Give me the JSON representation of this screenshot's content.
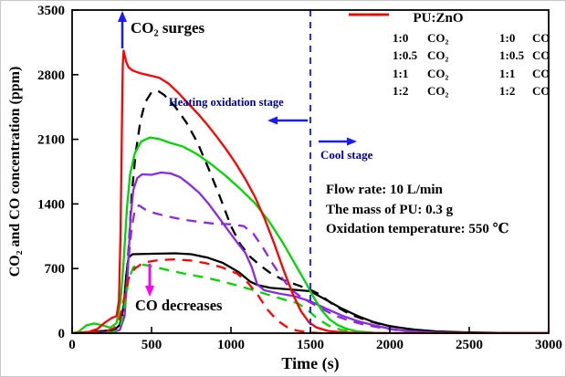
{
  "chart_data": {
    "type": "line",
    "title": "",
    "xlabel": "Time (s)",
    "ylabel": "CO₂ and CO concentration (ppm)",
    "xlim": [
      0,
      3000
    ],
    "ylim": [
      0,
      3500
    ],
    "x_ticks": [
      0,
      500,
      1000,
      1500,
      2000,
      2500,
      3000
    ],
    "y_ticks": [
      0,
      700,
      1400,
      2100,
      2800,
      3500
    ],
    "grid": false,
    "legend_position": "top-right",
    "stage_divider_x": 1500,
    "divider_color": "#2a2aff",
    "series": [
      {
        "name": "1:0 CO₂",
        "ratio": "1:0",
        "species": "CO₂",
        "color": "#000000",
        "style": "solid",
        "points": [
          [
            0,
            0
          ],
          [
            120,
            15
          ],
          [
            200,
            25
          ],
          [
            270,
            40
          ],
          [
            300,
            90
          ],
          [
            325,
            300
          ],
          [
            340,
            620
          ],
          [
            355,
            820
          ],
          [
            380,
            855
          ],
          [
            500,
            860
          ],
          [
            650,
            865
          ],
          [
            750,
            855
          ],
          [
            850,
            820
          ],
          [
            950,
            760
          ],
          [
            1050,
            660
          ],
          [
            1120,
            560
          ],
          [
            1170,
            520
          ],
          [
            1250,
            490
          ],
          [
            1400,
            470
          ],
          [
            1500,
            455
          ],
          [
            1600,
            360
          ],
          [
            1700,
            265
          ],
          [
            1800,
            185
          ],
          [
            1900,
            120
          ],
          [
            2000,
            75
          ],
          [
            2150,
            40
          ],
          [
            2300,
            18
          ],
          [
            2500,
            8
          ],
          [
            2700,
            3
          ],
          [
            3000,
            0
          ]
        ]
      },
      {
        "name": "1:0 CO",
        "ratio": "1:0",
        "species": "CO",
        "color": "#000000",
        "style": "dashed",
        "points": [
          [
            0,
            0
          ],
          [
            200,
            8
          ],
          [
            270,
            25
          ],
          [
            310,
            90
          ],
          [
            335,
            400
          ],
          [
            355,
            900
          ],
          [
            375,
            1500
          ],
          [
            400,
            1950
          ],
          [
            430,
            2300
          ],
          [
            460,
            2500
          ],
          [
            500,
            2610
          ],
          [
            540,
            2625
          ],
          [
            580,
            2580
          ],
          [
            650,
            2450
          ],
          [
            720,
            2280
          ],
          [
            790,
            2060
          ],
          [
            860,
            1780
          ],
          [
            930,
            1480
          ],
          [
            1000,
            1160
          ],
          [
            1060,
            960
          ],
          [
            1120,
            830
          ],
          [
            1180,
            740
          ],
          [
            1250,
            650
          ],
          [
            1330,
            575
          ],
          [
            1420,
            520
          ],
          [
            1500,
            470
          ],
          [
            1560,
            420
          ],
          [
            1650,
            300
          ],
          [
            1750,
            205
          ],
          [
            1850,
            140
          ],
          [
            1950,
            92
          ],
          [
            2100,
            48
          ],
          [
            2250,
            22
          ],
          [
            2450,
            8
          ],
          [
            2700,
            2
          ],
          [
            3000,
            0
          ]
        ]
      },
      {
        "name": "1:0.5 CO₂",
        "ratio": "1:0.5",
        "species": "CO₂",
        "color": "#8a2be2",
        "style": "solid",
        "points": [
          [
            0,
            0
          ],
          [
            250,
            8
          ],
          [
            300,
            35
          ],
          [
            330,
            180
          ],
          [
            350,
            650
          ],
          [
            368,
            1250
          ],
          [
            385,
            1550
          ],
          [
            410,
            1680
          ],
          [
            440,
            1720
          ],
          [
            500,
            1715
          ],
          [
            560,
            1740
          ],
          [
            620,
            1730
          ],
          [
            680,
            1690
          ],
          [
            740,
            1610
          ],
          [
            800,
            1520
          ],
          [
            860,
            1400
          ],
          [
            920,
            1260
          ],
          [
            980,
            1120
          ],
          [
            1040,
            980
          ],
          [
            1090,
            870
          ],
          [
            1130,
            720
          ],
          [
            1165,
            530
          ],
          [
            1210,
            465
          ],
          [
            1300,
            430
          ],
          [
            1400,
            400
          ],
          [
            1500,
            345
          ],
          [
            1600,
            265
          ],
          [
            1700,
            190
          ],
          [
            1800,
            130
          ],
          [
            1900,
            85
          ],
          [
            2000,
            48
          ],
          [
            2100,
            25
          ],
          [
            2250,
            8
          ],
          [
            2450,
            0
          ],
          [
            3000,
            0
          ]
        ]
      },
      {
        "name": "1:0.5 CO",
        "ratio": "1:0.5",
        "species": "CO",
        "color": "#8a2be2",
        "style": "dashed",
        "points": [
          [
            0,
            0
          ],
          [
            260,
            8
          ],
          [
            305,
            50
          ],
          [
            335,
            350
          ],
          [
            355,
            800
          ],
          [
            375,
            1150
          ],
          [
            395,
            1330
          ],
          [
            420,
            1385
          ],
          [
            460,
            1340
          ],
          [
            520,
            1300
          ],
          [
            600,
            1265
          ],
          [
            700,
            1230
          ],
          [
            800,
            1205
          ],
          [
            900,
            1185
          ],
          [
            1000,
            1180
          ],
          [
            1080,
            1160
          ],
          [
            1140,
            1080
          ],
          [
            1200,
            930
          ],
          [
            1260,
            760
          ],
          [
            1320,
            600
          ],
          [
            1380,
            470
          ],
          [
            1450,
            380
          ],
          [
            1550,
            285
          ],
          [
            1650,
            195
          ],
          [
            1750,
            132
          ],
          [
            1850,
            88
          ],
          [
            1950,
            56
          ],
          [
            2050,
            32
          ],
          [
            2200,
            12
          ],
          [
            2400,
            2
          ],
          [
            3000,
            0
          ]
        ]
      },
      {
        "name": "1:1 CO₂",
        "ratio": "1:1",
        "species": "CO₂",
        "color": "#00d400",
        "style": "solid",
        "points": [
          [
            0,
            0
          ],
          [
            40,
            15
          ],
          [
            90,
            85
          ],
          [
            140,
            105
          ],
          [
            190,
            85
          ],
          [
            240,
            60
          ],
          [
            280,
            110
          ],
          [
            305,
            350
          ],
          [
            325,
            800
          ],
          [
            345,
            1350
          ],
          [
            365,
            1720
          ],
          [
            395,
            1950
          ],
          [
            435,
            2075
          ],
          [
            490,
            2120
          ],
          [
            545,
            2105
          ],
          [
            610,
            2065
          ],
          [
            700,
            2020
          ],
          [
            790,
            1935
          ],
          [
            880,
            1825
          ],
          [
            970,
            1700
          ],
          [
            1060,
            1560
          ],
          [
            1150,
            1410
          ],
          [
            1240,
            1210
          ],
          [
            1330,
            970
          ],
          [
            1410,
            730
          ],
          [
            1470,
            550
          ],
          [
            1520,
            390
          ],
          [
            1570,
            250
          ],
          [
            1620,
            150
          ],
          [
            1670,
            90
          ],
          [
            1730,
            45
          ],
          [
            1800,
            18
          ],
          [
            1900,
            5
          ],
          [
            2000,
            0
          ],
          [
            3000,
            0
          ]
        ]
      },
      {
        "name": "1:1 CO",
        "ratio": "1:1",
        "species": "CO",
        "color": "#00d400",
        "style": "dashed",
        "points": [
          [
            0,
            0
          ],
          [
            250,
            8
          ],
          [
            300,
            45
          ],
          [
            330,
            280
          ],
          [
            355,
            580
          ],
          [
            385,
            715
          ],
          [
            425,
            745
          ],
          [
            475,
            735
          ],
          [
            550,
            705
          ],
          [
            650,
            665
          ],
          [
            750,
            630
          ],
          [
            850,
            598
          ],
          [
            950,
            558
          ],
          [
            1050,
            512
          ],
          [
            1150,
            462
          ],
          [
            1250,
            408
          ],
          [
            1350,
            356
          ],
          [
            1420,
            325
          ],
          [
            1480,
            255
          ],
          [
            1550,
            150
          ],
          [
            1620,
            78
          ],
          [
            1690,
            38
          ],
          [
            1770,
            12
          ],
          [
            1870,
            3
          ],
          [
            2000,
            0
          ],
          [
            3000,
            0
          ]
        ]
      },
      {
        "name": "1:2 CO₂",
        "ratio": "1:2",
        "species": "CO₂",
        "color": "#ff0000",
        "style": "solid",
        "points": [
          [
            0,
            0
          ],
          [
            100,
            12
          ],
          [
            160,
            45
          ],
          [
            210,
            120
          ],
          [
            250,
            165
          ],
          [
            280,
            185
          ],
          [
            295,
            350
          ],
          [
            305,
            1100
          ],
          [
            313,
            2200
          ],
          [
            319,
            2900
          ],
          [
            324,
            3060
          ],
          [
            331,
            3010
          ],
          [
            340,
            2940
          ],
          [
            355,
            2880
          ],
          [
            380,
            2845
          ],
          [
            430,
            2815
          ],
          [
            490,
            2790
          ],
          [
            550,
            2765
          ],
          [
            610,
            2700
          ],
          [
            670,
            2600
          ],
          [
            730,
            2490
          ],
          [
            790,
            2380
          ],
          [
            850,
            2260
          ],
          [
            910,
            2130
          ],
          [
            970,
            1990
          ],
          [
            1030,
            1840
          ],
          [
            1090,
            1670
          ],
          [
            1150,
            1480
          ],
          [
            1210,
            1250
          ],
          [
            1270,
            980
          ],
          [
            1330,
            690
          ],
          [
            1390,
            420
          ],
          [
            1440,
            240
          ],
          [
            1490,
            120
          ],
          [
            1540,
            60
          ],
          [
            1610,
            25
          ],
          [
            1700,
            10
          ],
          [
            1800,
            3
          ],
          [
            1900,
            0
          ],
          [
            3000,
            0
          ]
        ]
      },
      {
        "name": "1:2 CO",
        "ratio": "1:2",
        "species": "CO",
        "color": "#ff0000",
        "style": "dashed",
        "points": [
          [
            0,
            0
          ],
          [
            150,
            8
          ],
          [
            220,
            25
          ],
          [
            265,
            55
          ],
          [
            295,
            130
          ],
          [
            325,
            360
          ],
          [
            355,
            590
          ],
          [
            395,
            700
          ],
          [
            450,
            765
          ],
          [
            540,
            790
          ],
          [
            640,
            800
          ],
          [
            740,
            788
          ],
          [
            840,
            758
          ],
          [
            940,
            715
          ],
          [
            1040,
            645
          ],
          [
            1110,
            540
          ],
          [
            1170,
            410
          ],
          [
            1230,
            255
          ],
          [
            1290,
            140
          ],
          [
            1350,
            68
          ],
          [
            1410,
            30
          ],
          [
            1480,
            10
          ],
          [
            1550,
            2
          ],
          [
            1650,
            0
          ],
          [
            3000,
            0
          ]
        ]
      }
    ]
  },
  "legend": {
    "title": "PU:ZnO",
    "co2_label": "CO₂",
    "co_label": "CO",
    "rows": [
      {
        "ratio": "1:0",
        "color": "#000000"
      },
      {
        "ratio": "1:0.5",
        "color": "#8a2be2"
      },
      {
        "ratio": "1:1",
        "color": "#00d400"
      },
      {
        "ratio": "1:2",
        "color": "#ff0000"
      }
    ]
  },
  "annotations": {
    "co2_surges": "CO₂ surges",
    "heating_stage": "Heating oxidation stage",
    "cool_stage": "Cool stage",
    "co_decreases": "CO decreases",
    "info_lines": [
      "Flow rate: 10 L/min",
      "The mass of PU: 0.3 g",
      "Oxidation temperature: 550 ℃"
    ],
    "arrow_blue": "#1a1aff",
    "arrow_magenta": "#ff00ff",
    "stage_text_color": "#00008b"
  }
}
